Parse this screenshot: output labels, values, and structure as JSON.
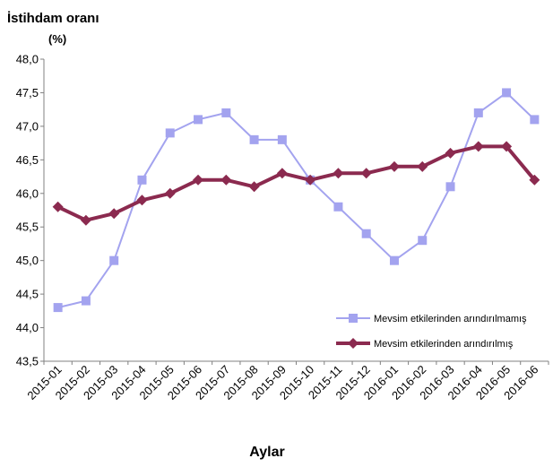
{
  "chart_data": {
    "type": "line",
    "title": "",
    "ylabel": "İstihdam oranı",
    "yunit": "(%)",
    "xlabel": "Aylar",
    "categories": [
      "2015-01",
      "2015-02",
      "2015-03",
      "2015-04",
      "2015-05",
      "2015-06",
      "2015-07",
      "2015-08",
      "2015-09",
      "2015-10",
      "2015-11",
      "2015-12",
      "2016-01",
      "2016-02",
      "2016-03",
      "2016-04",
      "2016-05",
      "2016-06"
    ],
    "ylim": [
      43.5,
      48.0
    ],
    "yticks": [
      "43,5",
      "44,0",
      "44,5",
      "45,0",
      "45,5",
      "46,0",
      "46,5",
      "47,0",
      "47,5",
      "48,0"
    ],
    "grid": false,
    "legend_position": "bottom-right",
    "series": [
      {
        "name": "Mevsim etkilerinden arındırılmamış",
        "color": "#a3a3ef",
        "marker": "square",
        "values": [
          44.3,
          44.4,
          45.0,
          46.2,
          46.9,
          47.1,
          47.2,
          46.8,
          46.8,
          46.2,
          45.8,
          45.4,
          45.0,
          45.3,
          46.1,
          47.2,
          47.5,
          47.1
        ]
      },
      {
        "name": "Mevsim etkilerinden arındırılmış",
        "color": "#8b2a4f",
        "marker": "diamond",
        "values": [
          45.8,
          45.6,
          45.7,
          45.9,
          46.0,
          46.2,
          46.2,
          46.1,
          46.3,
          46.2,
          46.3,
          46.3,
          46.4,
          46.4,
          46.6,
          46.7,
          46.7,
          46.2
        ]
      }
    ]
  }
}
